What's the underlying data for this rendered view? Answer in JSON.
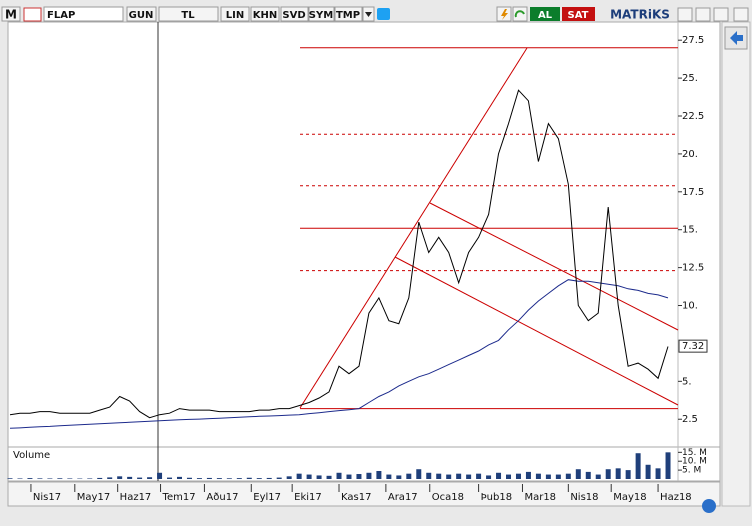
{
  "toolbar": {
    "logo": "M",
    "symbol": "FLAP",
    "buttons": [
      "GUN",
      "TL",
      "LIN",
      "KHN",
      "SVD",
      "SYM",
      "TMP"
    ],
    "buy": "AL",
    "sell": "SAT",
    "brand": "MATRiKS"
  },
  "chart_data": {
    "type": "line",
    "values": [
      2.8,
      2.9,
      2.9,
      3.0,
      3.0,
      2.9,
      2.9,
      2.9,
      2.9,
      3.1,
      3.3,
      4.0,
      3.7,
      3.0,
      2.6,
      2.8,
      2.9,
      3.2,
      3.1,
      3.1,
      3.1,
      3.0,
      3.0,
      3.0,
      3.0,
      3.1,
      3.1,
      3.2,
      3.2,
      3.4,
      3.6,
      3.9,
      4.3,
      6.0,
      5.5,
      6.0,
      9.5,
      10.5,
      9.0,
      8.8,
      10.5,
      15.5,
      13.5,
      14.5,
      13.5,
      11.5,
      13.5,
      14.5,
      16.0,
      20.0,
      22.0,
      24.2,
      23.5,
      19.5,
      22.0,
      21.0,
      18.0,
      10.0,
      9.0,
      9.5,
      16.5,
      10.0,
      6.0,
      6.2,
      5.8,
      5.2,
      7.3
    ],
    "color": "#000000",
    "moving_average": [
      1.9,
      1.93,
      1.97,
      2.0,
      2.03,
      2.07,
      2.1,
      2.13,
      2.17,
      2.2,
      2.23,
      2.27,
      2.3,
      2.33,
      2.37,
      2.4,
      2.43,
      2.46,
      2.49,
      2.51,
      2.54,
      2.57,
      2.6,
      2.63,
      2.66,
      2.69,
      2.71,
      2.74,
      2.77,
      2.8,
      2.87,
      2.93,
      3.0,
      3.07,
      3.13,
      3.2,
      3.6,
      4.0,
      4.3,
      4.7,
      5.0,
      5.3,
      5.5,
      5.8,
      6.1,
      6.4,
      6.7,
      7.0,
      7.4,
      7.7,
      8.4,
      9.0,
      9.7,
      10.3,
      10.8,
      11.3,
      11.7,
      11.6,
      11.6,
      11.5,
      11.4,
      11.3,
      11.1,
      11.0,
      10.8,
      10.7,
      10.5
    ],
    "moving_average_color": "#1c2a8c",
    "xlim": [
      0,
      67
    ],
    "xticks": [
      {
        "value": 2.1,
        "label": "Nis17"
      },
      {
        "value": 6.5,
        "label": "May17"
      },
      {
        "value": 10.8,
        "label": "Haz17"
      },
      {
        "value": 15.1,
        "label": "Tem17"
      },
      {
        "value": 19.5,
        "label": "Aðu17"
      },
      {
        "value": 24.2,
        "label": "Eyl17"
      },
      {
        "value": 28.3,
        "label": "Eki17"
      },
      {
        "value": 33,
        "label": "Kas17"
      },
      {
        "value": 37.7,
        "label": "Ara17"
      },
      {
        "value": 42.1,
        "label": "Oca18"
      },
      {
        "value": 47,
        "label": "Þub18"
      },
      {
        "value": 51.4,
        "label": "Mar18"
      },
      {
        "value": 56,
        "label": "Nis18"
      },
      {
        "value": 60.3,
        "label": "May18"
      },
      {
        "value": 65,
        "label": "Haz18"
      }
    ],
    "ylim": [
      0.8,
      28.7
    ],
    "yticks": [
      2.5,
      {
        "value": 5,
        "label": "5."
      },
      {
        "value": 10,
        "label": "10."
      },
      12.5,
      {
        "value": 15,
        "label": "15."
      },
      17.5,
      {
        "value": 20,
        "label": "20."
      },
      22.5,
      {
        "value": 25,
        "label": "25."
      },
      27.5
    ],
    "last_price": 7.32,
    "grid": false,
    "fib_levels": [
      27.0,
      21.3,
      17.9,
      15.1,
      12.3,
      3.2
    ],
    "fib_dashed": [
      false,
      true,
      true,
      false,
      true,
      false
    ],
    "fib_color": "#cc0000",
    "volume_title": "Volume",
    "volume": [
      400000,
      300000,
      500000,
      350000,
      300000,
      400000,
      300000,
      250000,
      300000,
      600000,
      900000,
      1500000,
      1200000,
      800000,
      1000000,
      3500000,
      800000,
      1200000,
      700000,
      500000,
      600000,
      500000,
      400000,
      500000,
      700000,
      500000,
      600000,
      800000,
      1500000,
      3000000,
      2500000,
      2000000,
      1800000,
      3500000,
      2500000,
      2800000,
      3500000,
      4500000,
      2500000,
      2000000,
      3000000,
      5500000,
      3500000,
      3000000,
      2500000,
      3000000,
      2500000,
      3000000,
      2000000,
      3500000,
      2500000,
      3000000,
      4000000,
      3000000,
      2500000,
      2500000,
      3000000,
      5500000,
      4000000,
      2500000,
      5500000,
      6000000,
      5000000,
      14500000,
      8000000,
      6000000,
      15000000
    ],
    "volume_color": "#1f3f7a",
    "volume_lim": [
      0,
      18000000
    ],
    "volume_ticks": [
      {
        "value": 5000000,
        "label": "5. M"
      },
      {
        "value": 10000000,
        "label": "10. M"
      },
      {
        "value": 15000000,
        "label": "15. M"
      }
    ]
  }
}
